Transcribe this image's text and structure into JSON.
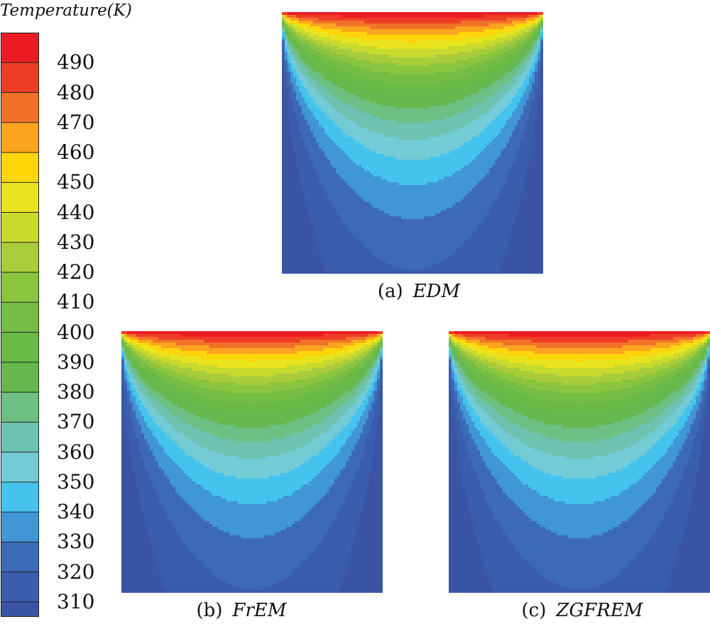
{
  "chart_data": {
    "type": "heatmap",
    "title": "Temperature(K)",
    "colorbar": {
      "levels": [
        310,
        320,
        330,
        340,
        350,
        360,
        370,
        380,
        390,
        400,
        410,
        420,
        430,
        440,
        450,
        460,
        470,
        480,
        490
      ],
      "range": [
        305,
        500
      ],
      "colors": [
        "#3A55A6",
        "#3B5DAE",
        "#3D6AB7",
        "#4196D5",
        "#44C3EF",
        "#73CBD6",
        "#6EC2B0",
        "#6DBF84",
        "#66B84F",
        "#69BA47",
        "#75BD45",
        "#8BC43F",
        "#A9CC3A",
        "#C9DA2F",
        "#E9E41D",
        "#FFD60A",
        "#FBA41F",
        "#F27129",
        "#EE3D27",
        "#ED1C24"
      ]
    },
    "panels": [
      {
        "id": "a",
        "label": "(a)",
        "method": "EDM"
      },
      {
        "id": "b",
        "label": "(b)",
        "method": "FrEM"
      },
      {
        "id": "c",
        "label": "(c)",
        "method": "ZGFREM"
      }
    ]
  }
}
